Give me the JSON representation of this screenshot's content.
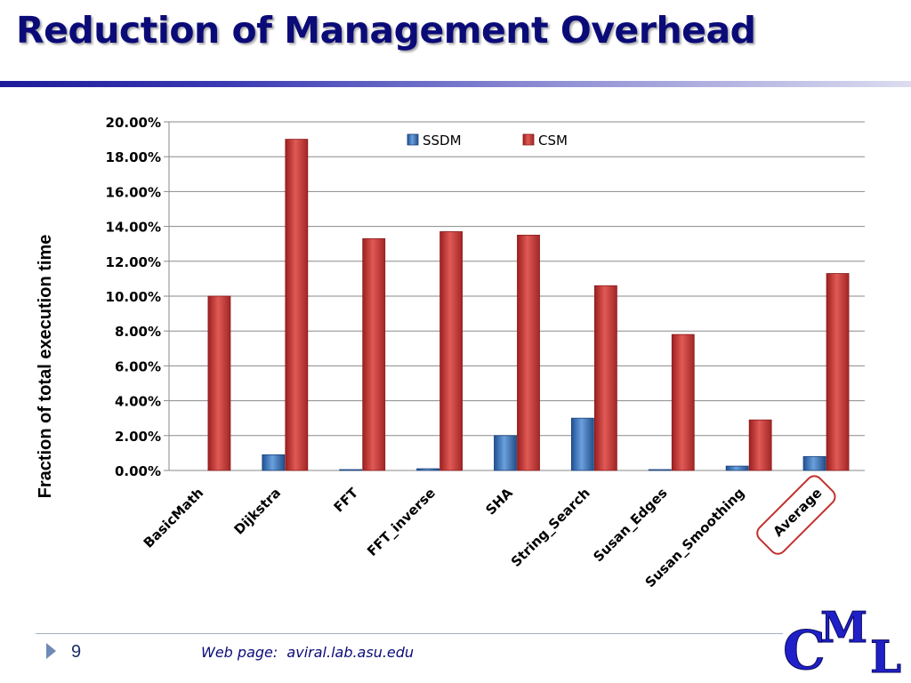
{
  "slide": {
    "title": "Reduction of Management Overhead",
    "page_number": "9",
    "footer_link": "Web page:  aviral.lab.asu.edu",
    "logo_text": "CML",
    "colors": {
      "title": "#0b0b78",
      "ssdm": "#2e6db4",
      "csm": "#c0302e",
      "highlight": "#c0302e"
    }
  },
  "chart_data": {
    "type": "bar",
    "title": "",
    "xlabel": "",
    "ylabel": "Fraction of total execution time",
    "ylim": [
      0,
      20
    ],
    "yticks": [
      "0.00%",
      "2.00%",
      "4.00%",
      "6.00%",
      "8.00%",
      "10.00%",
      "12.00%",
      "14.00%",
      "16.00%",
      "18.00%",
      "20.00%"
    ],
    "grid": true,
    "legend": "top",
    "categories": [
      "BasicMath",
      "Dijkstra",
      "FFT",
      "FFT_inverse",
      "SHA",
      "String_Search",
      "Susan_Edges",
      "Susan_Smoothing",
      "Average"
    ],
    "series": [
      {
        "name": "SSDM",
        "values": [
          0,
          0.9,
          0.05,
          0.1,
          2.0,
          3.0,
          0.05,
          0.25,
          0.8
        ]
      },
      {
        "name": "CSM",
        "values": [
          10.0,
          19.0,
          13.3,
          13.7,
          13.5,
          10.6,
          7.8,
          2.9,
          11.3
        ]
      }
    ],
    "highlighted_category": "Average"
  }
}
